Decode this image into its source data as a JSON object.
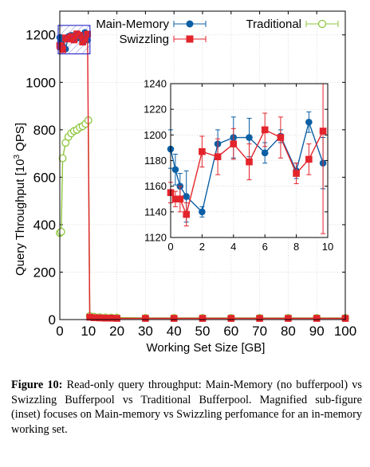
{
  "chart_data": {
    "type": "line",
    "main": {
      "xlabel": "Working Set Size [GB]",
      "ylabel_prefix": "Query Throughput [10",
      "ylabel_sup": "3",
      "ylabel_suffix": " QPS]",
      "xlim": [
        0,
        100
      ],
      "ylim": [
        0,
        1300
      ],
      "xticks": [
        0,
        10,
        20,
        30,
        40,
        50,
        60,
        70,
        80,
        90,
        100
      ],
      "yticks": [
        0,
        200,
        400,
        600,
        800,
        1000,
        1200
      ],
      "legend_position": "top",
      "series": [
        {
          "name": "Main-Memory",
          "color": "#0b5fa5",
          "marker": "circle",
          "x": [
            0,
            0.3,
            0.6,
            1,
            2,
            3,
            4,
            5,
            6,
            7,
            8,
            8.8,
            9.7
          ],
          "y": [
            1189,
            1173,
            1160,
            1152,
            1140,
            1193,
            1198,
            1198,
            1186,
            1199,
            1172,
            1210,
            1178
          ]
        },
        {
          "name": "Swizzling",
          "color": "#e3242b",
          "marker": "square",
          "x": [
            0,
            0.3,
            0.6,
            1,
            2,
            3,
            4,
            5,
            6,
            7,
            8,
            8.8,
            9.7,
            10.5,
            12,
            14,
            16,
            18,
            20,
            30,
            40,
            50,
            60,
            70,
            80,
            90,
            100
          ],
          "y": [
            1155,
            1150,
            1150,
            1138,
            1187,
            1183,
            1193,
            1179,
            1204,
            1198,
            1170,
            1181,
            1203,
            10,
            8,
            7,
            6,
            6,
            5,
            5,
            5,
            5,
            5,
            5,
            5,
            5,
            5
          ]
        },
        {
          "name": "Traditional",
          "color": "#8ec63f",
          "marker": "circle-open",
          "x": [
            0,
            0.5,
            1,
            2,
            3,
            4,
            5,
            6,
            7,
            8,
            9,
            10,
            10.5,
            12,
            14,
            16,
            18,
            20,
            30,
            40,
            50,
            60,
            70,
            80,
            90,
            100
          ],
          "y": [
            365,
            370,
            680,
            745,
            770,
            785,
            795,
            800,
            810,
            815,
            825,
            840,
            15,
            12,
            10,
            9,
            8,
            8,
            7,
            7,
            7,
            7,
            7,
            7,
            7,
            7
          ]
        }
      ]
    },
    "inset": {
      "xlim": [
        0,
        10
      ],
      "ylim": [
        1120,
        1240
      ],
      "xticks": [
        0,
        2,
        4,
        6,
        8,
        10
      ],
      "yticks": [
        1120,
        1140,
        1160,
        1180,
        1200,
        1220,
        1240
      ],
      "series": [
        {
          "name": "Main-Memory",
          "color": "#0b5fa5",
          "marker": "circle",
          "x": [
            0,
            0.3,
            0.6,
            1,
            2,
            3,
            4,
            5,
            6,
            7,
            8,
            8.8,
            9.7
          ],
          "y": [
            1189,
            1173,
            1160,
            1152,
            1140,
            1193,
            1198,
            1198,
            1186,
            1199,
            1172,
            1210,
            1178
          ],
          "err": [
            15,
            12,
            10,
            20,
            4,
            11,
            16,
            15,
            8,
            5,
            6,
            8,
            20
          ]
        },
        {
          "name": "Swizzling",
          "color": "#e3242b",
          "marker": "square",
          "x": [
            0,
            0.3,
            0.6,
            1,
            2,
            3,
            4,
            5,
            6,
            7,
            8,
            8.8,
            9.7
          ],
          "y": [
            1155,
            1150,
            1150,
            1138,
            1187,
            1183,
            1193,
            1179,
            1204,
            1198,
            1170,
            1181,
            1203
          ],
          "err": [
            8,
            6,
            10,
            9,
            12,
            14,
            12,
            14,
            13,
            16,
            8,
            12,
            80
          ]
        }
      ]
    }
  },
  "caption": {
    "label": "Figure 10:",
    "text": " Read-only query throughput: Main-Memory (no bufferpool) vs Swizzling Bufferpool vs Traditional Bufferpool. Magnified sub-figure (inset) focuses on Main-memory vs Swizzling perfomance for an in-memory working set."
  },
  "colors": {
    "main_memory": "#0b5fa5",
    "swizzling": "#e3242b",
    "traditional": "#8ec63f",
    "zoom_box": "#3333cc"
  }
}
